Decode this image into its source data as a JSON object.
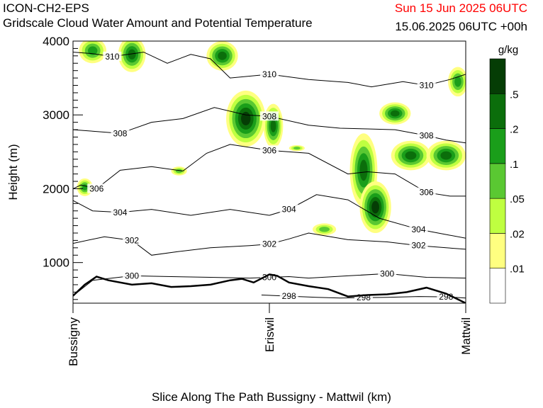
{
  "header": {
    "model": "ICON-CH2-EPS",
    "field": "Gridscale Cloud Water Amount and Potential Temperature",
    "valid_time": "Sun 15 Jun 2025 06UTC",
    "init_time": "15.06.2025 06UTC +00h"
  },
  "colors": {
    "valid_time": "#ff0000",
    "terrain_line": "#000000",
    "contour_line": "#000000"
  },
  "chart_data": {
    "type": "heatmap",
    "title": "Gridscale Cloud Water Amount and Potential Temperature",
    "xlabel": "Slice Along The Path Bussigny - Mattwil (km)",
    "ylabel": "Height (m)",
    "ylim": [
      450,
      4000
    ],
    "yticks": [
      1000,
      2000,
      3000,
      4000
    ],
    "x_categories": [
      "Bussigny",
      "Eriswil",
      "Mattwil"
    ],
    "xlim": [
      0,
      1
    ],
    "colorbar": {
      "unit": "g/kg",
      "levels": [
        ".01",
        ".02",
        ".05",
        ".1",
        ".2",
        ".5"
      ],
      "colors": [
        "#ffffff",
        "#ffff80",
        "#bfff40",
        "#5ac832",
        "#1a9e1a",
        "#0b6e0b",
        "#053d05"
      ]
    },
    "theta_contours": [
      {
        "label": "298",
        "points": [
          [
            0.48,
            560
          ],
          [
            0.55,
            545
          ],
          [
            0.62,
            530
          ],
          [
            0.68,
            520
          ],
          [
            0.74,
            525
          ],
          [
            0.8,
            530
          ],
          [
            0.88,
            540
          ],
          [
            0.95,
            535
          ],
          [
            1.0,
            520
          ]
        ]
      },
      {
        "label": "300",
        "points": [
          [
            0,
            550
          ],
          [
            0.05,
            760
          ],
          [
            0.15,
            820
          ],
          [
            0.25,
            810
          ],
          [
            0.35,
            800
          ],
          [
            0.45,
            790
          ],
          [
            0.5,
            800
          ],
          [
            0.55,
            810
          ],
          [
            0.6,
            790
          ],
          [
            0.7,
            820
          ],
          [
            0.8,
            850
          ],
          [
            0.9,
            800
          ],
          [
            1.0,
            790
          ]
        ]
      },
      {
        "label": "302",
        "points": [
          [
            0,
            1260
          ],
          [
            0.08,
            1350
          ],
          [
            0.15,
            1300
          ],
          [
            0.2,
            1100
          ],
          [
            0.27,
            1150
          ],
          [
            0.35,
            1200
          ],
          [
            0.45,
            1230
          ],
          [
            0.5,
            1250
          ],
          [
            0.55,
            1320
          ],
          [
            0.6,
            1400
          ],
          [
            0.7,
            1310
          ],
          [
            0.8,
            1280
          ],
          [
            0.88,
            1230
          ],
          [
            0.95,
            1200
          ],
          [
            1.0,
            1180
          ]
        ]
      },
      {
        "label": "304",
        "points": [
          [
            0,
            1840
          ],
          [
            0.05,
            1700
          ],
          [
            0.12,
            1680
          ],
          [
            0.2,
            1720
          ],
          [
            0.3,
            1640
          ],
          [
            0.4,
            1720
          ],
          [
            0.5,
            1640
          ],
          [
            0.55,
            1720
          ],
          [
            0.62,
            1920
          ],
          [
            0.7,
            1850
          ],
          [
            0.78,
            1600
          ],
          [
            0.88,
            1450
          ],
          [
            0.95,
            1380
          ],
          [
            1.0,
            1330
          ]
        ]
      },
      {
        "label": "306",
        "points": [
          [
            0,
            2000
          ],
          [
            0.02,
            2050
          ],
          [
            0.06,
            2000
          ],
          [
            0.12,
            2250
          ],
          [
            0.2,
            2300
          ],
          [
            0.28,
            2240
          ],
          [
            0.34,
            2480
          ],
          [
            0.4,
            2600
          ],
          [
            0.5,
            2520
          ],
          [
            0.6,
            2480
          ],
          [
            0.7,
            2200
          ],
          [
            0.75,
            2230
          ],
          [
            0.82,
            2200
          ],
          [
            0.9,
            1950
          ],
          [
            0.96,
            1900
          ],
          [
            1.0,
            1900
          ]
        ]
      },
      {
        "label": "308",
        "points": [
          [
            0,
            2800
          ],
          [
            0.05,
            2780
          ],
          [
            0.12,
            2750
          ],
          [
            0.2,
            2900
          ],
          [
            0.28,
            2950
          ],
          [
            0.36,
            3100
          ],
          [
            0.44,
            3000
          ],
          [
            0.5,
            2980
          ],
          [
            0.6,
            2860
          ],
          [
            0.68,
            2820
          ],
          [
            0.75,
            2810
          ],
          [
            0.82,
            2800
          ],
          [
            0.9,
            2720
          ],
          [
            0.95,
            2660
          ],
          [
            1.0,
            2620
          ]
        ]
      },
      {
        "label": "310",
        "points": [
          [
            0,
            3850
          ],
          [
            0.05,
            3830
          ],
          [
            0.1,
            3790
          ],
          [
            0.18,
            3850
          ],
          [
            0.24,
            3700
          ],
          [
            0.3,
            3820
          ],
          [
            0.35,
            3760
          ],
          [
            0.4,
            3500
          ],
          [
            0.5,
            3550
          ],
          [
            0.6,
            3480
          ],
          [
            0.7,
            3440
          ],
          [
            0.76,
            3380
          ],
          [
            0.84,
            3450
          ],
          [
            0.9,
            3400
          ],
          [
            0.96,
            3480
          ],
          [
            1.0,
            3550
          ]
        ]
      }
    ],
    "terrain": [
      [
        0,
        550
      ],
      [
        0.03,
        700
      ],
      [
        0.06,
        810
      ],
      [
        0.09,
        760
      ],
      [
        0.15,
        700
      ],
      [
        0.2,
        720
      ],
      [
        0.25,
        670
      ],
      [
        0.3,
        680
      ],
      [
        0.35,
        700
      ],
      [
        0.4,
        760
      ],
      [
        0.43,
        780
      ],
      [
        0.46,
        730
      ],
      [
        0.5,
        840
      ],
      [
        0.52,
        820
      ],
      [
        0.55,
        730
      ],
      [
        0.6,
        680
      ],
      [
        0.65,
        640
      ],
      [
        0.7,
        540
      ],
      [
        0.75,
        560
      ],
      [
        0.8,
        570
      ],
      [
        0.85,
        600
      ],
      [
        0.9,
        660
      ],
      [
        0.95,
        580
      ],
      [
        1.0,
        450
      ]
    ],
    "cloud_water_cells": [
      {
        "x": 0.05,
        "y": 3870,
        "rx": 0.035,
        "ry": 170,
        "value": 0.1
      },
      {
        "x": 0.15,
        "y": 3820,
        "rx": 0.035,
        "ry": 240,
        "value": 0.2
      },
      {
        "x": 0.38,
        "y": 3800,
        "rx": 0.04,
        "ry": 200,
        "value": 0.2
      },
      {
        "x": 0.44,
        "y": 2950,
        "rx": 0.05,
        "ry": 380,
        "value": 0.5
      },
      {
        "x": 0.51,
        "y": 2850,
        "rx": 0.025,
        "ry": 300,
        "value": 0.2
      },
      {
        "x": 0.74,
        "y": 2250,
        "rx": 0.035,
        "ry": 500,
        "value": 0.2
      },
      {
        "x": 0.77,
        "y": 1750,
        "rx": 0.04,
        "ry": 350,
        "value": 0.5
      },
      {
        "x": 0.86,
        "y": 2450,
        "rx": 0.05,
        "ry": 200,
        "value": 0.2
      },
      {
        "x": 0.95,
        "y": 2450,
        "rx": 0.05,
        "ry": 200,
        "value": 0.2
      },
      {
        "x": 0.82,
        "y": 3020,
        "rx": 0.04,
        "ry": 150,
        "value": 0.2
      },
      {
        "x": 0.27,
        "y": 2240,
        "rx": 0.02,
        "ry": 60,
        "value": 0.05
      },
      {
        "x": 0.03,
        "y": 2020,
        "rx": 0.02,
        "ry": 120,
        "value": 0.1
      },
      {
        "x": 0.57,
        "y": 2550,
        "rx": 0.02,
        "ry": 40,
        "value": 0.05
      },
      {
        "x": 0.98,
        "y": 3450,
        "rx": 0.025,
        "ry": 200,
        "value": 0.1
      },
      {
        "x": 0.64,
        "y": 1450,
        "rx": 0.03,
        "ry": 80,
        "value": 0.05
      }
    ]
  }
}
